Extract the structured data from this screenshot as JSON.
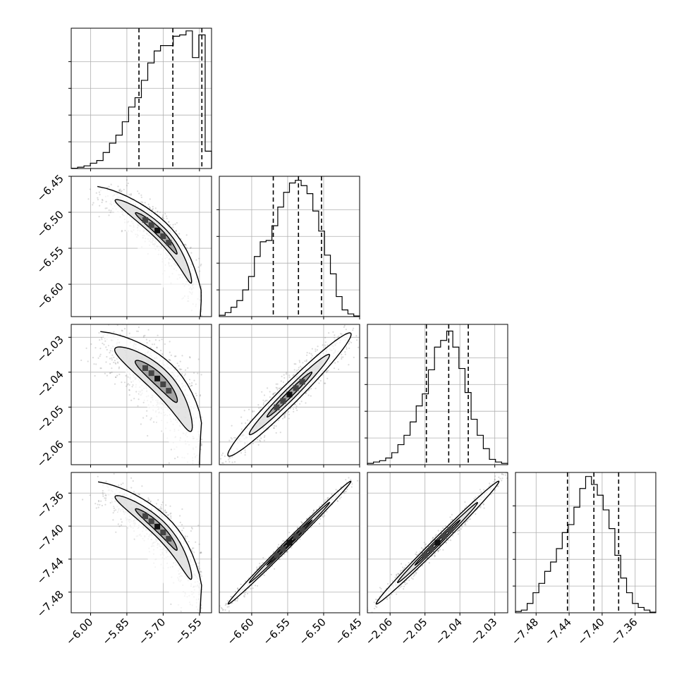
{
  "chart_data": {
    "type": "corner",
    "title": "",
    "grid": true,
    "colors": {
      "line": "#000000",
      "grid": "#b0b0b0",
      "frame": "#000000",
      "scatter": "#7f7f7f"
    },
    "parameters": [
      {
        "range": [
          -6.08,
          -5.5
        ],
        "ticks": [
          -6.0,
          -5.85,
          -5.7,
          -5.55
        ],
        "tick_labels": [
          "−6.00",
          "−5.85",
          "−5.70",
          "−5.55"
        ],
        "quantiles": [
          -5.8,
          -5.66,
          -5.54
        ],
        "hist": [
          0.002,
          0.01,
          0.02,
          0.04,
          0.06,
          0.12,
          0.19,
          0.25,
          0.35,
          0.46,
          0.53,
          0.66,
          0.79,
          0.88,
          0.92,
          0.92,
          0.99,
          1.0,
          1.03,
          0.83,
          1.0,
          0.13
        ]
      },
      {
        "range": [
          -6.645,
          -6.45
        ],
        "ticks": [
          -6.6,
          -6.55,
          -6.5,
          -6.45
        ],
        "tick_labels": [
          "−6.60",
          "−6.55",
          "−6.50",
          "−6.45"
        ],
        "quantiles": [
          -6.57,
          -6.535,
          -6.503
        ],
        "hist": [
          0.01,
          0.03,
          0.07,
          0.12,
          0.2,
          0.3,
          0.45,
          0.56,
          0.57,
          0.68,
          0.82,
          0.93,
          1.0,
          1.02,
          0.98,
          0.92,
          0.79,
          0.64,
          0.46,
          0.32,
          0.15,
          0.05,
          0.02,
          0.005
        ]
      },
      {
        "range": [
          -2.0665,
          -2.0263
        ],
        "ticks": [
          -2.06,
          -2.05,
          -2.04,
          -2.03
        ],
        "tick_labels": [
          "−2.06",
          "−2.05",
          "−2.04",
          "−2.03"
        ],
        "quantiles": [
          -2.0496,
          -2.0432,
          -2.0376
        ],
        "hist": [
          0.01,
          0.02,
          0.03,
          0.05,
          0.09,
          0.15,
          0.22,
          0.32,
          0.44,
          0.53,
          0.71,
          0.88,
          0.93,
          1.0,
          0.88,
          0.72,
          0.54,
          0.34,
          0.22,
          0.12,
          0.04,
          0.02,
          0.01
        ]
      },
      {
        "range": [
          -7.505,
          -7.335
        ],
        "ticks": [
          -7.48,
          -7.44,
          -7.4,
          -7.36
        ],
        "tick_labels": [
          "−7.48",
          "−7.44",
          "−7.40",
          "−7.36"
        ],
        "quantiles": [
          -7.442,
          -7.41,
          -7.38
        ],
        "hist": [
          0.01,
          0.02,
          0.07,
          0.15,
          0.22,
          0.31,
          0.38,
          0.48,
          0.6,
          0.66,
          0.79,
          0.93,
          1.02,
          0.96,
          0.88,
          0.77,
          0.63,
          0.43,
          0.26,
          0.15,
          0.07,
          0.04,
          0.02,
          0.005
        ]
      }
    ],
    "pairs": [
      {
        "row": 1,
        "col": 0,
        "shape": "curved-decreasing",
        "corr": -0.8
      },
      {
        "row": 2,
        "col": 0,
        "shape": "curved-decreasing",
        "corr": -0.6
      },
      {
        "row": 2,
        "col": 1,
        "shape": "linear",
        "corr": 0.93
      },
      {
        "row": 3,
        "col": 0,
        "shape": "curved-decreasing",
        "corr": -0.75
      },
      {
        "row": 3,
        "col": 1,
        "shape": "linear",
        "corr": 0.985
      },
      {
        "row": 3,
        "col": 2,
        "shape": "linear",
        "corr": 0.975
      }
    ]
  }
}
